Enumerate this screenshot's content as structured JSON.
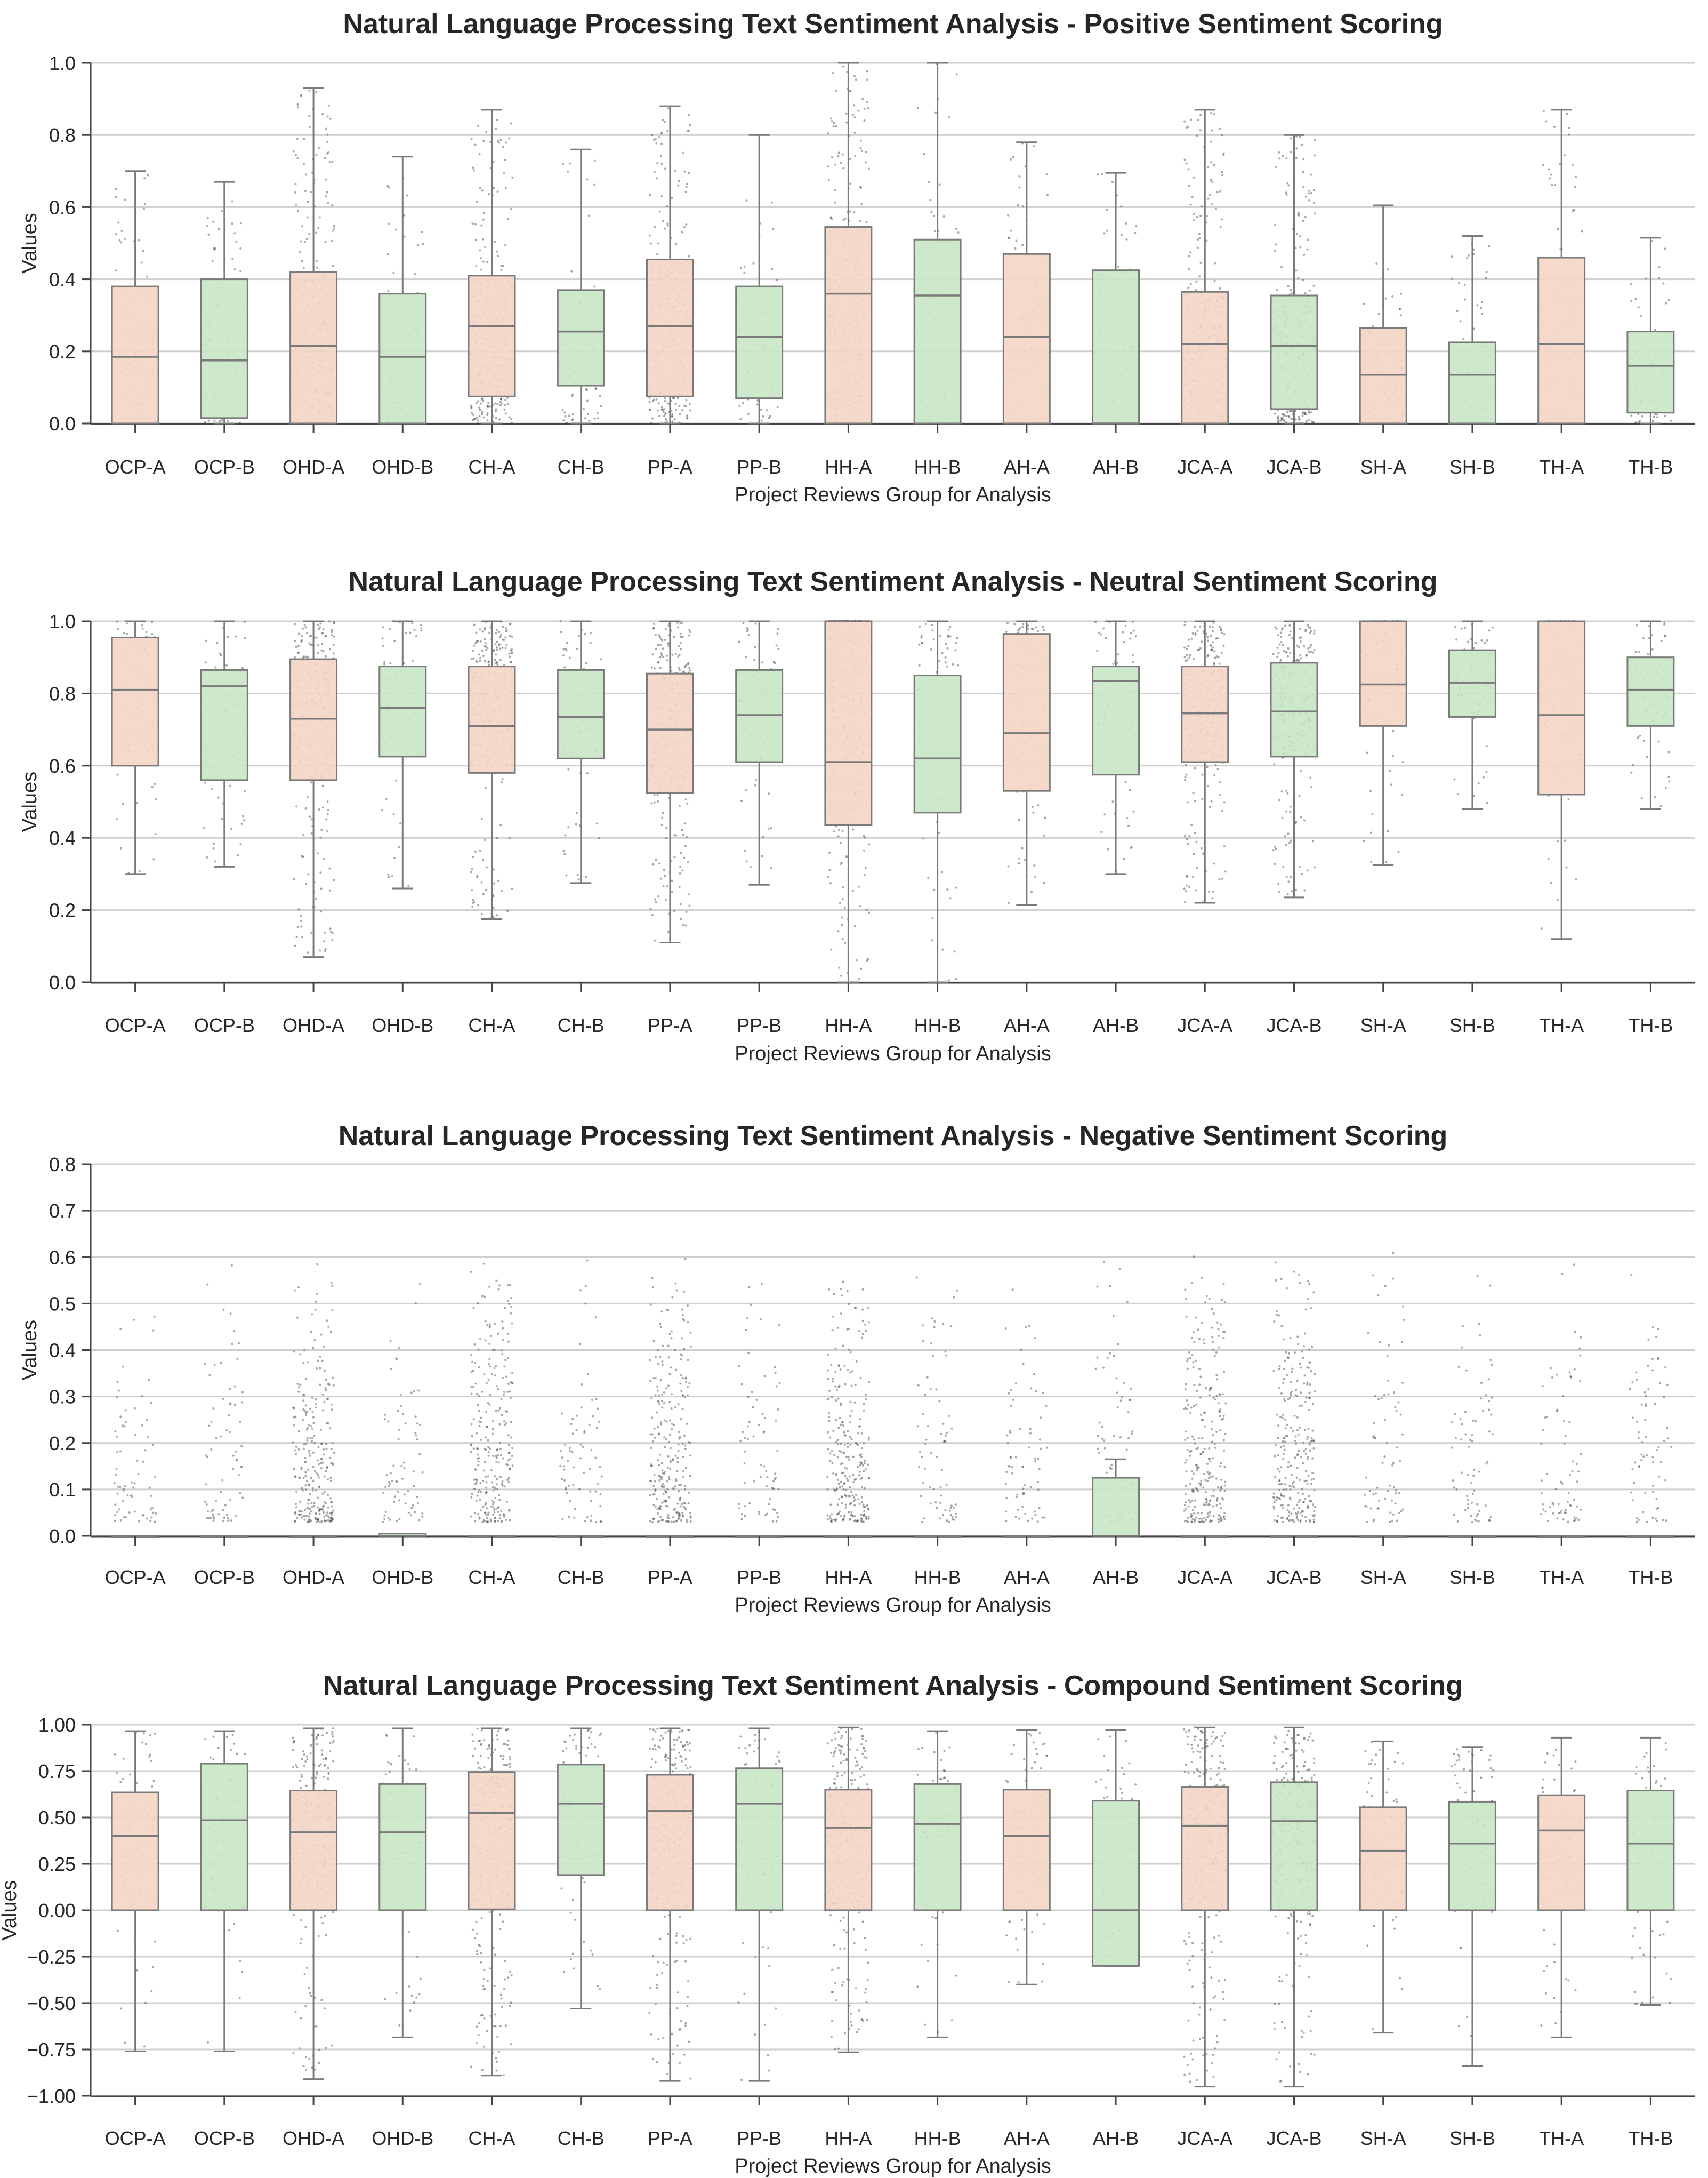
{
  "colors": {
    "group_a": "#f4d6c6",
    "group_b": "#c8e6c4",
    "box_edge": "#7a7a7a",
    "grid": "#cfcfcf",
    "points": "#3a3a3a"
  },
  "chart_data": [
    {
      "type": "box",
      "title": "Natural Language Processing Text Sentiment Analysis - Positive Sentiment Scoring",
      "xlabel": "Project Reviews Group for Analysis",
      "ylabel": "Values",
      "ylim": [
        0,
        1
      ],
      "yticks": [
        0.0,
        0.2,
        0.4,
        0.6,
        0.8,
        1.0
      ],
      "ytick_labels": [
        "0.0",
        "0.2",
        "0.4",
        "0.6",
        "0.8",
        "1.0"
      ],
      "grid": true,
      "categories": [
        "OCP-A",
        "OCP-B",
        "OHD-A",
        "OHD-B",
        "CH-A",
        "CH-B",
        "PP-A",
        "PP-B",
        "HH-A",
        "HH-B",
        "AH-A",
        "AH-B",
        "JCA-A",
        "JCA-B",
        "SH-A",
        "SH-B",
        "TH-A",
        "TH-B"
      ],
      "boxes": [
        {
          "whislo": 0,
          "q1": 0,
          "med": 0.185,
          "q3": 0.38,
          "whishi": 0.7
        },
        {
          "whislo": 0,
          "q1": 0.015,
          "med": 0.175,
          "q3": 0.4,
          "whishi": 0.67
        },
        {
          "whislo": 0,
          "q1": 0,
          "med": 0.215,
          "q3": 0.42,
          "whishi": 0.93
        },
        {
          "whislo": 0,
          "q1": 0,
          "med": 0.185,
          "q3": 0.36,
          "whishi": 0.74
        },
        {
          "whislo": 0,
          "q1": 0.075,
          "med": 0.27,
          "q3": 0.41,
          "whishi": 0.87
        },
        {
          "whislo": 0,
          "q1": 0.105,
          "med": 0.255,
          "q3": 0.37,
          "whishi": 0.76
        },
        {
          "whislo": 0,
          "q1": 0.075,
          "med": 0.27,
          "q3": 0.455,
          "whishi": 0.88
        },
        {
          "whislo": 0,
          "q1": 0.07,
          "med": 0.24,
          "q3": 0.38,
          "whishi": 0.8
        },
        {
          "whislo": 0,
          "q1": 0,
          "med": 0.36,
          "q3": 0.545,
          "whishi": 1.0
        },
        {
          "whislo": 0,
          "q1": 0,
          "med": 0.355,
          "q3": 0.51,
          "whishi": 1.0
        },
        {
          "whislo": 0,
          "q1": 0,
          "med": 0.24,
          "q3": 0.47,
          "whishi": 0.78
        },
        {
          "whislo": 0,
          "q1": 0,
          "med": 0,
          "q3": 0.425,
          "whishi": 0.695
        },
        {
          "whislo": 0,
          "q1": 0,
          "med": 0.22,
          "q3": 0.365,
          "whishi": 0.87
        },
        {
          "whislo": 0,
          "q1": 0.04,
          "med": 0.215,
          "q3": 0.355,
          "whishi": 0.8
        },
        {
          "whislo": 0,
          "q1": 0,
          "med": 0.135,
          "q3": 0.265,
          "whishi": 0.605
        },
        {
          "whislo": 0,
          "q1": 0,
          "med": 0.135,
          "q3": 0.225,
          "whishi": 0.52
        },
        {
          "whislo": 0,
          "q1": 0,
          "med": 0.22,
          "q3": 0.46,
          "whishi": 0.87
        },
        {
          "whislo": 0,
          "q1": 0.03,
          "med": 0.16,
          "q3": 0.255,
          "whishi": 0.515
        }
      ]
    },
    {
      "type": "box",
      "title": "Natural Language Processing Text Sentiment Analysis - Neutral Sentiment Scoring",
      "xlabel": "Project Reviews Group for Analysis",
      "ylabel": "Values",
      "ylim": [
        0,
        1
      ],
      "yticks": [
        0.0,
        0.2,
        0.4,
        0.6,
        0.8,
        1.0
      ],
      "ytick_labels": [
        "0.0",
        "0.2",
        "0.4",
        "0.6",
        "0.8",
        "1.0"
      ],
      "grid": true,
      "categories": [
        "OCP-A",
        "OCP-B",
        "OHD-A",
        "OHD-B",
        "CH-A",
        "CH-B",
        "PP-A",
        "PP-B",
        "HH-A",
        "HH-B",
        "AH-A",
        "AH-B",
        "JCA-A",
        "JCA-B",
        "SH-A",
        "SH-B",
        "TH-A",
        "TH-B"
      ],
      "boxes": [
        {
          "whislo": 0.3,
          "q1": 0.6,
          "med": 0.81,
          "q3": 0.955,
          "whishi": 1.0
        },
        {
          "whislo": 0.32,
          "q1": 0.56,
          "med": 0.82,
          "q3": 0.865,
          "whishi": 1.0
        },
        {
          "whislo": 0.07,
          "q1": 0.56,
          "med": 0.73,
          "q3": 0.895,
          "whishi": 1.0
        },
        {
          "whislo": 0.26,
          "q1": 0.625,
          "med": 0.76,
          "q3": 0.875,
          "whishi": 1.0
        },
        {
          "whislo": 0.175,
          "q1": 0.58,
          "med": 0.71,
          "q3": 0.875,
          "whishi": 1.0
        },
        {
          "whislo": 0.275,
          "q1": 0.62,
          "med": 0.735,
          "q3": 0.865,
          "whishi": 1.0
        },
        {
          "whislo": 0.11,
          "q1": 0.525,
          "med": 0.7,
          "q3": 0.855,
          "whishi": 1.0
        },
        {
          "whislo": 0.27,
          "q1": 0.61,
          "med": 0.74,
          "q3": 0.865,
          "whishi": 1.0
        },
        {
          "whislo": 0.0,
          "q1": 0.435,
          "med": 0.61,
          "q3": 1.0,
          "whishi": 1.0
        },
        {
          "whislo": 0.0,
          "q1": 0.47,
          "med": 0.62,
          "q3": 0.85,
          "whishi": 1.0
        },
        {
          "whislo": 0.215,
          "q1": 0.53,
          "med": 0.69,
          "q3": 0.965,
          "whishi": 1.0
        },
        {
          "whislo": 0.3,
          "q1": 0.575,
          "med": 0.835,
          "q3": 0.875,
          "whishi": 1.0
        },
        {
          "whislo": 0.22,
          "q1": 0.61,
          "med": 0.745,
          "q3": 0.875,
          "whishi": 1.0
        },
        {
          "whislo": 0.235,
          "q1": 0.625,
          "med": 0.75,
          "q3": 0.885,
          "whishi": 1.0
        },
        {
          "whislo": 0.325,
          "q1": 0.71,
          "med": 0.825,
          "q3": 1.0,
          "whishi": 1.0
        },
        {
          "whislo": 0.48,
          "q1": 0.735,
          "med": 0.83,
          "q3": 0.92,
          "whishi": 1.0
        },
        {
          "whislo": 0.12,
          "q1": 0.52,
          "med": 0.74,
          "q3": 1.0,
          "whishi": 1.0
        },
        {
          "whislo": 0.48,
          "q1": 0.71,
          "med": 0.81,
          "q3": 0.9,
          "whishi": 1.0
        }
      ]
    },
    {
      "type": "box",
      "title": "Natural Language Processing Text Sentiment Analysis - Negative Sentiment Scoring",
      "xlabel": "Project Reviews Group for Analysis",
      "ylabel": "Values",
      "ylim": [
        0,
        0.8
      ],
      "yticks": [
        0.0,
        0.1,
        0.2,
        0.3,
        0.4,
        0.5,
        0.6,
        0.7,
        0.8
      ],
      "ytick_labels": [
        "0.0",
        "0.1",
        "0.2",
        "0.3",
        "0.4",
        "0.5",
        "0.6",
        "0.7",
        "0.8"
      ],
      "grid": true,
      "categories": [
        "OCP-A",
        "OCP-B",
        "OHD-A",
        "OHD-B",
        "CH-A",
        "CH-B",
        "PP-A",
        "PP-B",
        "HH-A",
        "HH-B",
        "AH-A",
        "AH-B",
        "JCA-A",
        "JCA-B",
        "SH-A",
        "SH-B",
        "TH-A",
        "TH-B"
      ],
      "boxes": [
        {
          "whislo": 0,
          "q1": 0,
          "med": 0,
          "q3": 0,
          "whishi": 0
        },
        {
          "whislo": 0,
          "q1": 0,
          "med": 0,
          "q3": 0,
          "whishi": 0
        },
        {
          "whislo": 0,
          "q1": 0,
          "med": 0,
          "q3": 0,
          "whishi": 0
        },
        {
          "whislo": 0,
          "q1": 0,
          "med": 0,
          "q3": 0.005,
          "whishi": 0.005
        },
        {
          "whislo": 0,
          "q1": 0,
          "med": 0,
          "q3": 0,
          "whishi": 0
        },
        {
          "whislo": 0,
          "q1": 0,
          "med": 0,
          "q3": 0,
          "whishi": 0
        },
        {
          "whislo": 0,
          "q1": 0,
          "med": 0,
          "q3": 0,
          "whishi": 0
        },
        {
          "whislo": 0,
          "q1": 0,
          "med": 0,
          "q3": 0,
          "whishi": 0
        },
        {
          "whislo": 0,
          "q1": 0,
          "med": 0,
          "q3": 0,
          "whishi": 0
        },
        {
          "whislo": 0,
          "q1": 0,
          "med": 0,
          "q3": 0,
          "whishi": 0
        },
        {
          "whislo": 0,
          "q1": 0,
          "med": 0,
          "q3": 0,
          "whishi": 0
        },
        {
          "whislo": 0,
          "q1": 0,
          "med": 0,
          "q3": 0.125,
          "whishi": 0.165
        },
        {
          "whislo": 0,
          "q1": 0,
          "med": 0,
          "q3": 0,
          "whishi": 0
        },
        {
          "whislo": 0,
          "q1": 0,
          "med": 0,
          "q3": 0,
          "whishi": 0
        },
        {
          "whislo": 0,
          "q1": 0,
          "med": 0,
          "q3": 0,
          "whishi": 0
        },
        {
          "whislo": 0,
          "q1": 0,
          "med": 0,
          "q3": 0,
          "whishi": 0
        },
        {
          "whislo": 0,
          "q1": 0,
          "med": 0,
          "q3": 0,
          "whishi": 0
        },
        {
          "whislo": 0,
          "q1": 0,
          "med": 0,
          "q3": 0,
          "whishi": 0
        }
      ]
    },
    {
      "type": "box",
      "title": "Natural Language Processing Text Sentiment Analysis - Compound Sentiment Scoring",
      "xlabel": "Project Reviews Group for Analysis",
      "ylabel": "Values",
      "ylim": [
        -1,
        1
      ],
      "yticks": [
        -1.0,
        -0.75,
        -0.5,
        -0.25,
        0.0,
        0.25,
        0.5,
        0.75,
        1.0
      ],
      "ytick_labels": [
        "−1.00",
        "−0.75",
        "−0.50",
        "−0.25",
        "0.00",
        "0.25",
        "0.50",
        "0.75",
        "1.00"
      ],
      "grid": true,
      "categories": [
        "OCP-A",
        "OCP-B",
        "OHD-A",
        "OHD-B",
        "CH-A",
        "CH-B",
        "PP-A",
        "PP-B",
        "HH-A",
        "HH-B",
        "AH-A",
        "AH-B",
        "JCA-A",
        "JCA-B",
        "SH-A",
        "SH-B",
        "TH-A",
        "TH-B"
      ],
      "boxes": [
        {
          "whislo": -0.76,
          "q1": 0,
          "med": 0.4,
          "q3": 0.635,
          "whishi": 0.965
        },
        {
          "whislo": -0.76,
          "q1": 0,
          "med": 0.485,
          "q3": 0.79,
          "whishi": 0.965
        },
        {
          "whislo": -0.91,
          "q1": 0,
          "med": 0.42,
          "q3": 0.645,
          "whishi": 0.98
        },
        {
          "whislo": -0.685,
          "q1": 0,
          "med": 0.42,
          "q3": 0.68,
          "whishi": 0.98
        },
        {
          "whislo": -0.89,
          "q1": 0.005,
          "med": 0.525,
          "q3": 0.745,
          "whishi": 0.98
        },
        {
          "whislo": -0.53,
          "q1": 0.19,
          "med": 0.575,
          "q3": 0.785,
          "whishi": 0.98
        },
        {
          "whislo": -0.92,
          "q1": 0,
          "med": 0.535,
          "q3": 0.73,
          "whishi": 0.98
        },
        {
          "whislo": -0.92,
          "q1": 0,
          "med": 0.575,
          "q3": 0.765,
          "whishi": 0.98
        },
        {
          "whislo": -0.765,
          "q1": 0,
          "med": 0.445,
          "q3": 0.65,
          "whishi": 0.985
        },
        {
          "whislo": -0.685,
          "q1": 0,
          "med": 0.465,
          "q3": 0.68,
          "whishi": 0.965
        },
        {
          "whislo": -0.4,
          "q1": 0,
          "med": 0.4,
          "q3": 0.65,
          "whishi": 0.97
        },
        {
          "whislo": -0.3,
          "q1": -0.3,
          "med": 0.0,
          "q3": 0.59,
          "whishi": 0.97
        },
        {
          "whislo": -0.95,
          "q1": 0,
          "med": 0.455,
          "q3": 0.665,
          "whishi": 0.985
        },
        {
          "whislo": -0.95,
          "q1": 0,
          "med": 0.48,
          "q3": 0.69,
          "whishi": 0.985
        },
        {
          "whislo": -0.66,
          "q1": 0,
          "med": 0.32,
          "q3": 0.555,
          "whishi": 0.91
        },
        {
          "whislo": -0.84,
          "q1": 0,
          "med": 0.36,
          "q3": 0.585,
          "whishi": 0.88
        },
        {
          "whislo": -0.685,
          "q1": 0,
          "med": 0.43,
          "q3": 0.62,
          "whishi": 0.93
        },
        {
          "whislo": -0.51,
          "q1": 0,
          "med": 0.36,
          "q3": 0.645,
          "whishi": 0.93
        }
      ]
    }
  ]
}
